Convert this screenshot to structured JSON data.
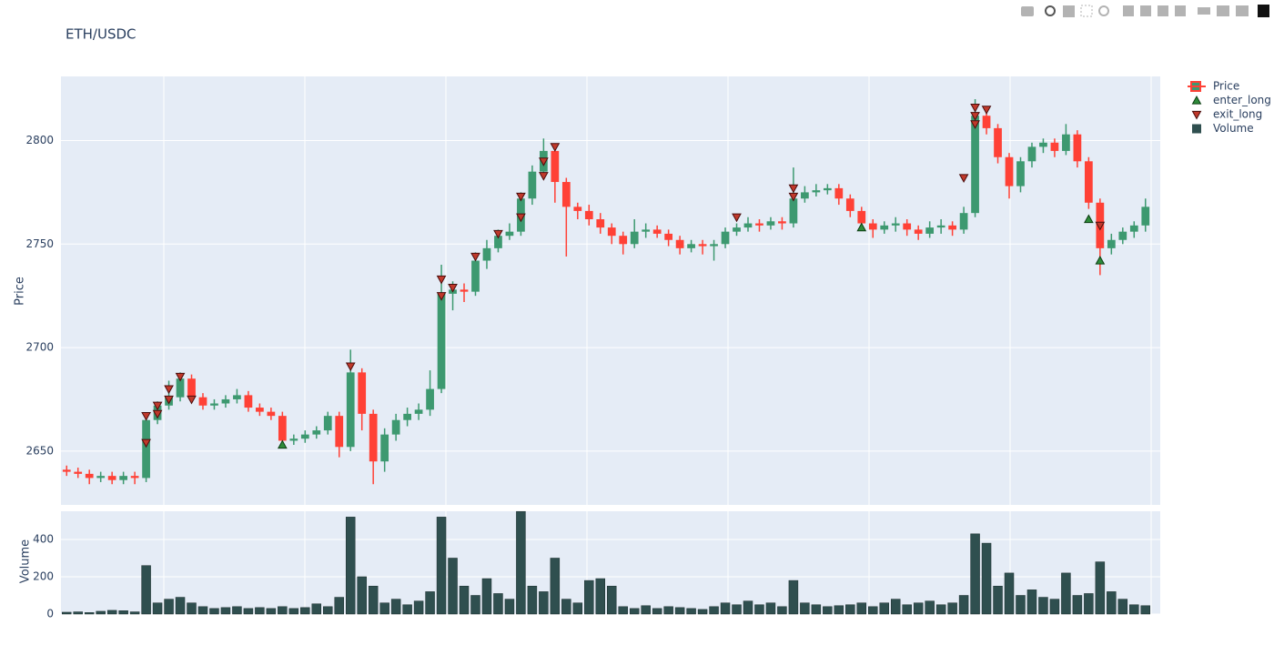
{
  "chart_data": {
    "type": "candlestick",
    "title": "ETH/USDC",
    "ylabel": "Price",
    "y2label": "Volume",
    "ylim": [
      2624,
      2831
    ],
    "yticks": [
      2650,
      2700,
      2750,
      2800
    ],
    "y2lim": [
      0,
      551
    ],
    "y2ticks": [
      0,
      200,
      400
    ],
    "grid": true,
    "legend": "top-right",
    "series": [
      {
        "name": "Price",
        "type": "candlestick",
        "increasing_color": "#3d9970",
        "decreasing_color": "#ff4136",
        "open": [
          2641,
          2640,
          2639,
          2637,
          2638,
          2636,
          2638,
          2637,
          2665,
          2672,
          2676,
          2685,
          2676,
          2672,
          2673,
          2675,
          2677,
          2671,
          2669,
          2667,
          2655,
          2656,
          2658,
          2660,
          2667,
          2652,
          2688,
          2668,
          2645,
          2658,
          2665,
          2668,
          2670,
          2680,
          2726,
          2728,
          2727,
          2742,
          2748,
          2754,
          2756,
          2772,
          2785,
          2795,
          2780,
          2768,
          2766,
          2762,
          2758,
          2754,
          2750,
          2756,
          2757,
          2755,
          2752,
          2748,
          2750,
          2749,
          2750,
          2756,
          2758,
          2760,
          2759,
          2761,
          2760,
          2772,
          2775,
          2776,
          2777,
          2772,
          2766,
          2760,
          2757,
          2759,
          2760,
          2757,
          2755,
          2758,
          2759,
          2757,
          2765,
          2812,
          2806,
          2792,
          2778,
          2790,
          2797,
          2799,
          2795,
          2803,
          2790,
          2770,
          2748,
          2752,
          2756,
          2759
        ],
        "high": [
          2643,
          2642,
          2641,
          2640,
          2640,
          2640,
          2640,
          2667,
          2674,
          2684,
          2688,
          2687,
          2678,
          2675,
          2677,
          2680,
          2679,
          2673,
          2671,
          2669,
          2658,
          2660,
          2662,
          2669,
          2669,
          2699,
          2690,
          2670,
          2661,
          2668,
          2671,
          2673,
          2689,
          2740,
          2732,
          2731,
          2746,
          2752,
          2757,
          2760,
          2775,
          2788,
          2801,
          2797,
          2782,
          2770,
          2769,
          2765,
          2760,
          2756,
          2762,
          2760,
          2759,
          2757,
          2754,
          2752,
          2752,
          2752,
          2758,
          2760,
          2763,
          2762,
          2763,
          2763,
          2787,
          2778,
          2779,
          2779,
          2779,
          2774,
          2768,
          2762,
          2761,
          2763,
          2762,
          2759,
          2761,
          2762,
          2761,
          2768,
          2820,
          2815,
          2808,
          2794,
          2792,
          2799,
          2801,
          2801,
          2808,
          2805,
          2792,
          2772,
          2755,
          2758,
          2761,
          2772
        ],
        "low": [
          2638,
          2637,
          2634,
          2635,
          2634,
          2634,
          2634,
          2635,
          2663,
          2670,
          2674,
          2674,
          2670,
          2670,
          2671,
          2673,
          2669,
          2667,
          2665,
          2652,
          2653,
          2654,
          2656,
          2658,
          2647,
          2650,
          2660,
          2634,
          2640,
          2655,
          2662,
          2665,
          2667,
          2678,
          2718,
          2722,
          2725,
          2738,
          2746,
          2752,
          2754,
          2769,
          2782,
          2770,
          2744,
          2762,
          2759,
          2755,
          2750,
          2745,
          2748,
          2753,
          2753,
          2749,
          2745,
          2746,
          2745,
          2742,
          2748,
          2754,
          2756,
          2756,
          2757,
          2757,
          2758,
          2770,
          2773,
          2774,
          2769,
          2763,
          2757,
          2753,
          2755,
          2756,
          2754,
          2752,
          2753,
          2755,
          2754,
          2755,
          2763,
          2803,
          2789,
          2772,
          2775,
          2787,
          2794,
          2792,
          2793,
          2787,
          2767,
          2735,
          2745,
          2750,
          2753,
          2756
        ],
        "close": [
          2640,
          2639,
          2637,
          2638,
          2636,
          2638,
          2637,
          2665,
          2672,
          2676,
          2685,
          2676,
          2672,
          2673,
          2675,
          2677,
          2671,
          2669,
          2667,
          2655,
          2656,
          2658,
          2660,
          2667,
          2652,
          2688,
          2668,
          2645,
          2658,
          2665,
          2668,
          2670,
          2680,
          2726,
          2728,
          2727,
          2742,
          2748,
          2754,
          2756,
          2772,
          2785,
          2795,
          2780,
          2768,
          2766,
          2762,
          2758,
          2754,
          2750,
          2756,
          2757,
          2755,
          2752,
          2748,
          2750,
          2749,
          2750,
          2756,
          2758,
          2760,
          2759,
          2761,
          2760,
          2772,
          2775,
          2776,
          2777,
          2772,
          2766,
          2760,
          2757,
          2759,
          2760,
          2757,
          2755,
          2758,
          2759,
          2757,
          2765,
          2812,
          2806,
          2792,
          2778,
          2790,
          2797,
          2799,
          2795,
          2803,
          2790,
          2770,
          2748,
          2752,
          2756,
          2759,
          2768
        ]
      },
      {
        "name": "enter_long",
        "type": "marker",
        "symbol": "triangle-up",
        "color": "#2e8b3a",
        "stroke": "#0b3d12",
        "x": [
          19,
          70,
          90,
          91
        ],
        "values": [
          2653,
          2758,
          2762,
          2742
        ]
      },
      {
        "name": "exit_long",
        "type": "marker",
        "symbol": "triangle-down",
        "color": "#c0392b",
        "stroke": "#4a0d0d",
        "x": [
          7,
          7,
          8,
          8,
          9,
          9,
          10,
          11,
          25,
          33,
          33,
          34,
          36,
          38,
          40,
          40,
          42,
          42,
          43,
          59,
          64,
          64,
          79,
          80,
          80,
          80,
          81,
          91
        ],
        "values": [
          2654,
          2667,
          2672,
          2668,
          2675,
          2680,
          2686,
          2675,
          2691,
          2725,
          2733,
          2729,
          2744,
          2755,
          2763,
          2773,
          2783,
          2790,
          2797,
          2763,
          2773,
          2777,
          2782,
          2812,
          2816,
          2808,
          2815,
          2759
        ]
      },
      {
        "name": "Volume",
        "type": "bar",
        "axis": "y2",
        "color": "#2f4f4f",
        "values": [
          10,
          12,
          8,
          15,
          20,
          18,
          12,
          260,
          60,
          80,
          90,
          60,
          40,
          30,
          35,
          40,
          30,
          35,
          30,
          40,
          30,
          35,
          55,
          40,
          90,
          520,
          200,
          150,
          60,
          80,
          50,
          70,
          120,
          520,
          300,
          150,
          100,
          190,
          110,
          80,
          550,
          150,
          120,
          300,
          80,
          60,
          180,
          190,
          150,
          40,
          30,
          45,
          30,
          40,
          35,
          30,
          25,
          40,
          60,
          50,
          70,
          50,
          60,
          40,
          180,
          60,
          50,
          40,
          45,
          50,
          60,
          40,
          60,
          80,
          50,
          60,
          70,
          50,
          60,
          100,
          430,
          380,
          150,
          220,
          100,
          130,
          90,
          80,
          220,
          100,
          110,
          280,
          120,
          80,
          50,
          45
        ]
      }
    ]
  }
}
